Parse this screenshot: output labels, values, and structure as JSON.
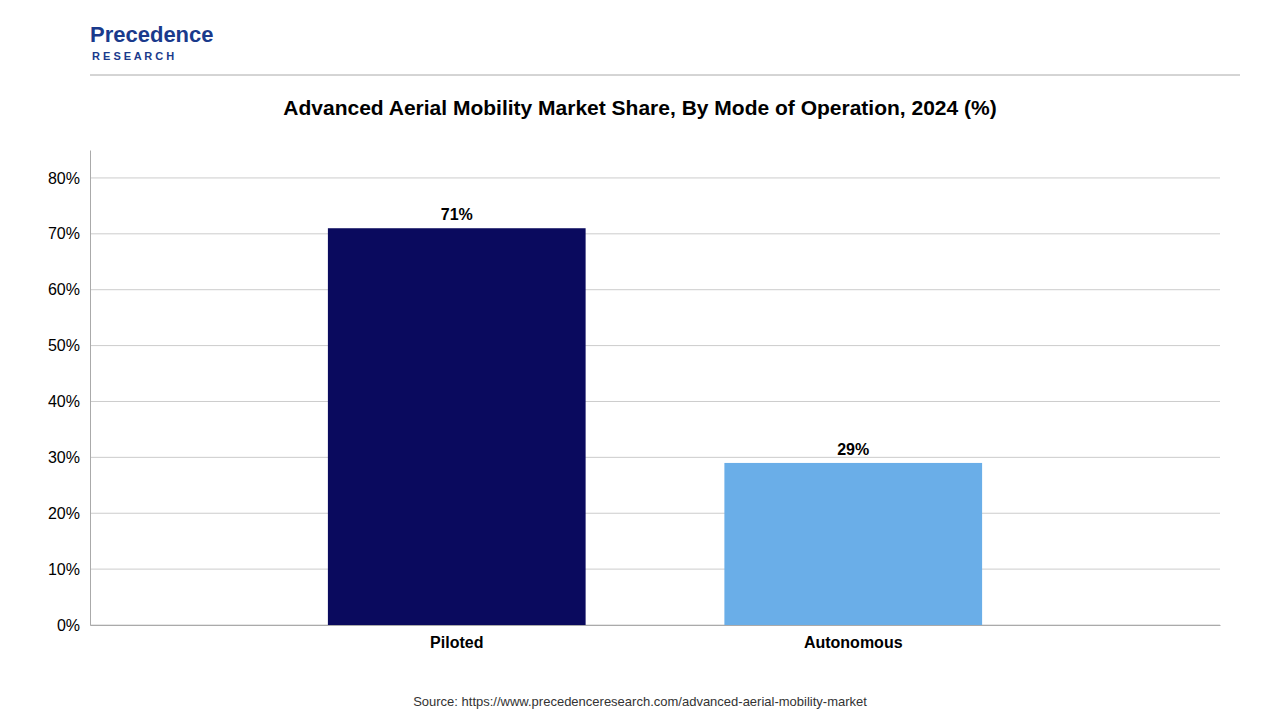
{
  "chart_data": {
    "type": "bar",
    "title": "Advanced Aerial Mobility Market Share, By Mode of Operation, 2024 (%)",
    "categories": [
      "Piloted",
      "Autonomous"
    ],
    "values": [
      71,
      29
    ],
    "value_labels": [
      "71%",
      "29%"
    ],
    "colors": [
      "#0a0a5e",
      "#6aaee8"
    ],
    "ylim": [
      0,
      85
    ],
    "yticks": [
      {
        "value": 0,
        "label": "0%"
      },
      {
        "value": 10,
        "label": "10%"
      },
      {
        "value": 20,
        "label": "20%"
      },
      {
        "value": 30,
        "label": "30%"
      },
      {
        "value": 40,
        "label": "40%"
      },
      {
        "value": 50,
        "label": "50%"
      },
      {
        "value": 60,
        "label": "60%"
      },
      {
        "value": 70,
        "label": "70%"
      },
      {
        "value": 80,
        "label": "80%"
      }
    ],
    "grid": true,
    "data_labels": true,
    "annotations": [
      "Source: https://www.precedenceresearch.com/advanced-aerial-mobility-market",
      "Precedence",
      "R E S E A R C H"
    ]
  }
}
